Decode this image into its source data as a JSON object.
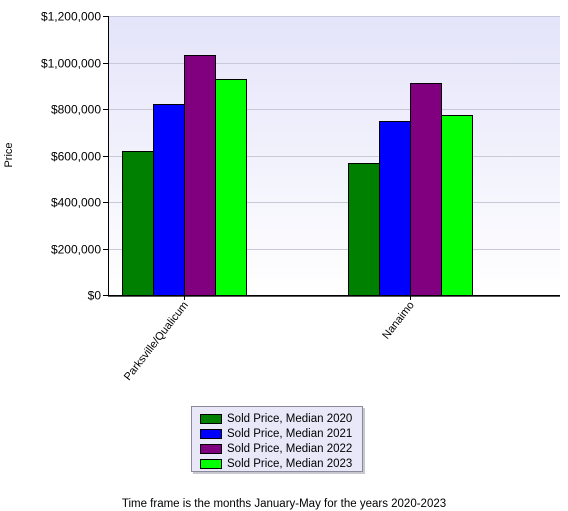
{
  "chart_data": {
    "type": "bar",
    "title": "",
    "xlabel": "",
    "ylabel": "Price",
    "categories": [
      "Parksville/Qualicum",
      "Nanaimo"
    ],
    "series": [
      {
        "name": "Sold Price, Median 2020",
        "color": "#008000",
        "values": [
          620000,
          568000
        ]
      },
      {
        "name": "Sold Price, Median 2021",
        "color": "#0000ff",
        "values": [
          820000,
          748000
        ]
      },
      {
        "name": "Sold Price, Median 2022",
        "color": "#800080",
        "values": [
          1032000,
          912000
        ]
      },
      {
        "name": "Sold Price, Median 2023",
        "color": "#00ff00",
        "values": [
          928000,
          775000
        ]
      }
    ],
    "ylim": [
      0,
      1200000
    ],
    "yticks": [
      "$0",
      "$200,000",
      "$400,000",
      "$600,000",
      "$800,000",
      "$1,000,000",
      "$1,200,000"
    ],
    "ytick_values": [
      0,
      200000,
      400000,
      600000,
      800000,
      1000000,
      1200000
    ],
    "grid": true,
    "legend": "bottom-center"
  },
  "footnote": "Time frame is the months January-May for the years 2020-2023"
}
